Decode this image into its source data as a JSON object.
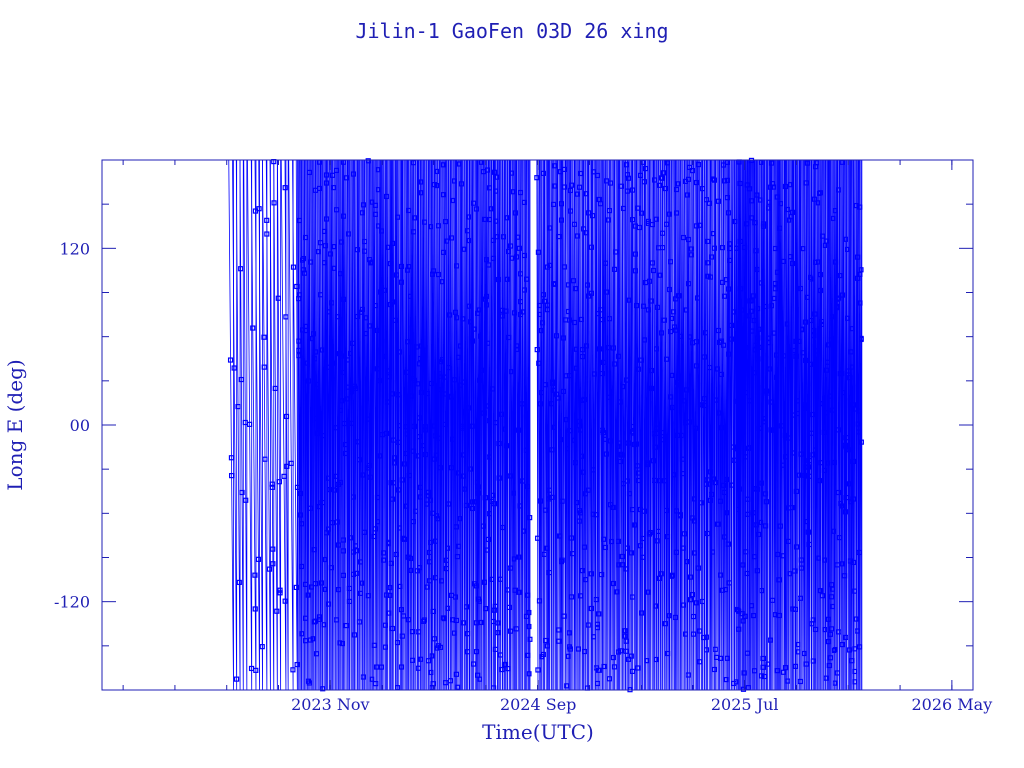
{
  "colors": {
    "accent": "#1f1fb4",
    "series": "#0000ff",
    "background": "#ffffff"
  },
  "chart_data": {
    "type": "line",
    "title": "Jilin-1 GaoFen 03D 26 xing",
    "xlabel": "Time(UTC)",
    "ylabel": "Long E (deg)",
    "ylim": [
      -180,
      180
    ],
    "xlim": [
      "2022-12-01",
      "2026-06-01"
    ],
    "x_ticks": [
      {
        "date": "2023-11-01",
        "label": "2023 Nov"
      },
      {
        "date": "2024-09-01",
        "label": "2024 Sep"
      },
      {
        "date": "2025-07-01",
        "label": "2025 Jul"
      },
      {
        "date": "2026-05-01",
        "label": "2026 May"
      }
    ],
    "y_ticks": [
      {
        "value": 120,
        "label": "120"
      },
      {
        "value": 0,
        "label": "00"
      },
      {
        "value": -120,
        "label": "-120"
      }
    ],
    "y_minor_step": 30,
    "grid": false,
    "series": [
      {
        "marker": "square",
        "pattern": "sawtooth",
        "periods": [
          {
            "start": "2023-06-05",
            "end": "2023-09-15",
            "step_days": 5.5
          },
          {
            "start": "2023-09-15",
            "end": "2024-08-20",
            "step_days": 1.8
          },
          {
            "start": "2024-08-20",
            "end": "2024-08-30",
            "step_days": 0
          },
          {
            "start": "2024-08-30",
            "end": "2025-06-20",
            "step_days": 1.9
          },
          {
            "start": "2025-06-20",
            "end": "2025-07-20",
            "step_days": 1.5
          },
          {
            "start": "2025-07-20",
            "end": "2025-12-20",
            "step_days": 1.7
          }
        ]
      }
    ]
  }
}
